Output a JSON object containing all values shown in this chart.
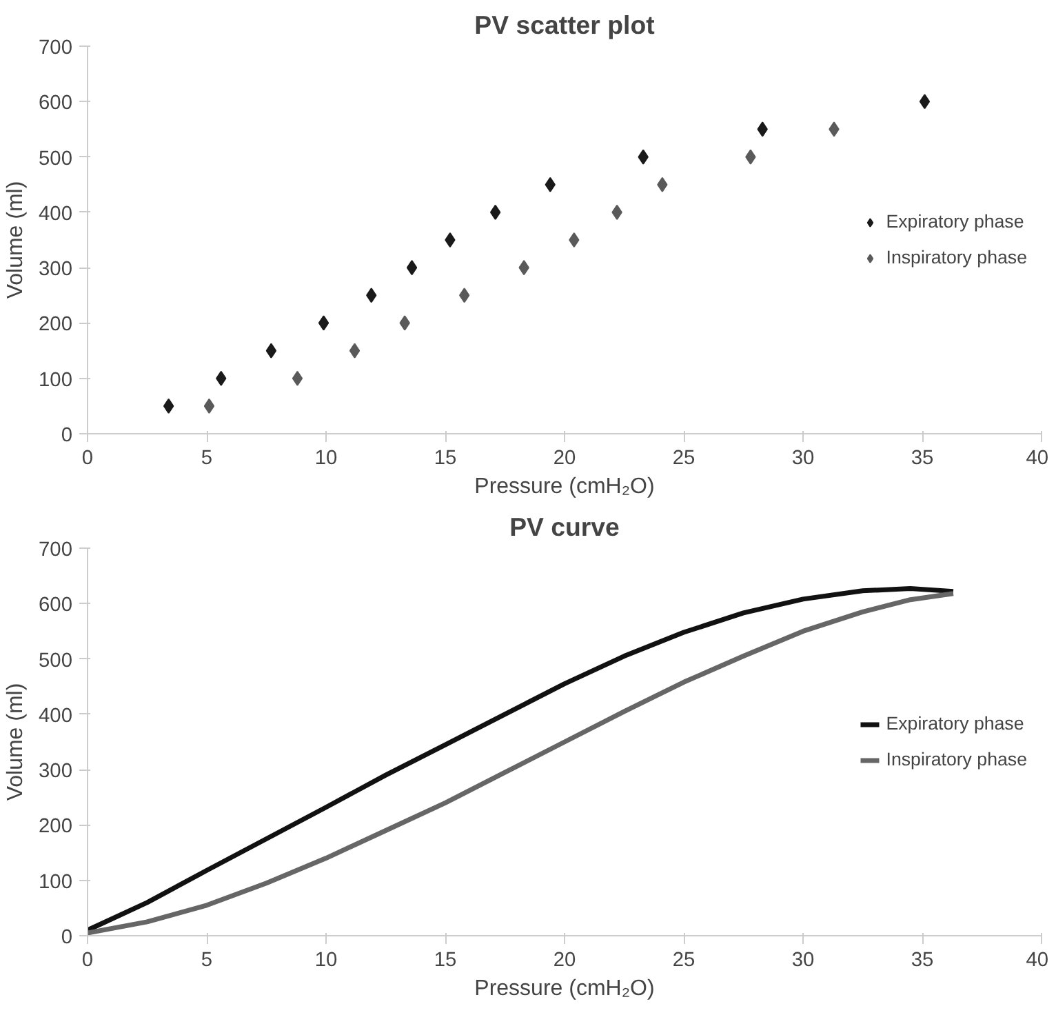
{
  "chart_data": [
    {
      "type": "scatter",
      "title": "PV scatter plot",
      "xlabel": "Pressure (cmH₂O)",
      "ylabel": "Volume (ml)",
      "xlim": [
        0,
        40
      ],
      "xticks": [
        0,
        5,
        10,
        15,
        20,
        25,
        30,
        35,
        40
      ],
      "ylim": [
        0,
        700
      ],
      "yticks": [
        0,
        100,
        200,
        300,
        400,
        500,
        600,
        700
      ],
      "grid": false,
      "legend": "right",
      "marker": "diamond",
      "series": [
        {
          "name": "Expiratory phase",
          "color": "#1a1a1a",
          "x": [
            3.4,
            5.6,
            7.7,
            9.9,
            11.9,
            13.6,
            15.2,
            17.1,
            19.4,
            23.3,
            28.3,
            35.1
          ],
          "values": [
            50,
            100,
            150,
            200,
            250,
            300,
            350,
            400,
            450,
            500,
            550,
            600
          ]
        },
        {
          "name": "Inspiratory phase",
          "color": "#5a5a5a",
          "x": [
            5.1,
            8.8,
            11.2,
            13.3,
            15.8,
            18.3,
            20.4,
            22.2,
            24.1,
            27.8,
            31.3
          ],
          "values": [
            50,
            100,
            150,
            200,
            250,
            300,
            350,
            400,
            450,
            500,
            550
          ]
        }
      ]
    },
    {
      "type": "line",
      "title": "PV curve",
      "xlabel": "Pressure (cmH₂O)",
      "ylabel": "Volume (ml)",
      "xlim": [
        0,
        40
      ],
      "xticks": [
        0,
        5,
        10,
        15,
        20,
        25,
        30,
        35,
        40
      ],
      "ylim": [
        0,
        700
      ],
      "yticks": [
        0,
        100,
        200,
        300,
        400,
        500,
        600,
        700
      ],
      "grid": false,
      "legend": "right",
      "line_style": "solid",
      "series": [
        {
          "name": "Expiratory phase",
          "color": "#111111",
          "x": [
            0,
            2.5,
            5,
            7.5,
            10,
            12.5,
            15,
            17.5,
            20,
            22.5,
            25,
            27.5,
            30,
            32.5,
            34.5,
            36.3
          ],
          "values": [
            10,
            60,
            118,
            175,
            232,
            290,
            345,
            400,
            455,
            505,
            548,
            583,
            608,
            623,
            627,
            622
          ]
        },
        {
          "name": "Inspiratory phase",
          "color": "#666666",
          "x": [
            0,
            2.5,
            5,
            7.5,
            10,
            12.5,
            15,
            17.5,
            20,
            22.5,
            25,
            27.5,
            30,
            32.5,
            34.5,
            36.3
          ],
          "values": [
            5,
            25,
            55,
            95,
            140,
            190,
            240,
            295,
            350,
            405,
            458,
            505,
            550,
            585,
            607,
            618
          ]
        }
      ]
    }
  ]
}
